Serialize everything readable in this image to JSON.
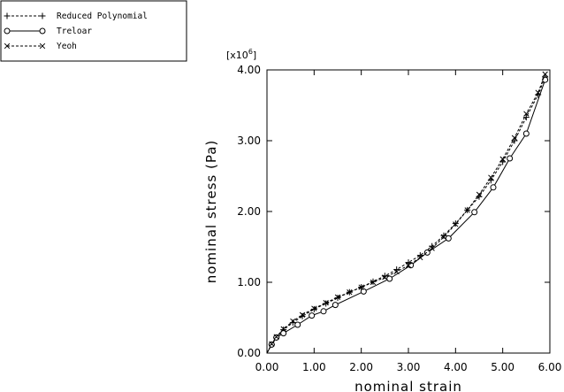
{
  "chart_data": {
    "type": "line",
    "xlabel": "nominal strain",
    "ylabel": "nominal stress (Pa)",
    "y_multiplier": {
      "base": "x10",
      "exponent": "6",
      "open": "[",
      "close": "]"
    },
    "xlim": [
      0,
      6
    ],
    "ylim": [
      0,
      4
    ],
    "x_ticks": [
      0,
      1,
      2,
      3,
      4,
      5,
      6
    ],
    "y_ticks": [
      0,
      1,
      2,
      3,
      4
    ],
    "x_tick_labels": [
      "0.00",
      "1.00",
      "2.00",
      "3.00",
      "4.00",
      "5.00",
      "6.00"
    ],
    "y_tick_labels": [
      "0.00",
      "1.00",
      "2.00",
      "3.00",
      "4.00"
    ],
    "grid": false,
    "legend_position": "top-left, outside plot",
    "series": [
      {
        "name": "Reduced Polynomial",
        "marker": "plus",
        "line_style": "dashed",
        "x": [
          0.0,
          0.1,
          0.2,
          0.35,
          0.55,
          0.75,
          1.0,
          1.25,
          1.5,
          1.75,
          2.0,
          2.25,
          2.5,
          2.75,
          3.0,
          3.25,
          3.5,
          3.75,
          4.0,
          4.25,
          4.5,
          4.75,
          5.0,
          5.25,
          5.5,
          5.75,
          5.9
        ],
        "y": [
          0.0,
          0.12,
          0.22,
          0.33,
          0.43,
          0.52,
          0.62,
          0.7,
          0.78,
          0.86,
          0.93,
          1.01,
          1.09,
          1.18,
          1.28,
          1.38,
          1.51,
          1.66,
          1.83,
          2.02,
          2.21,
          2.44,
          2.7,
          3.0,
          3.33,
          3.65,
          3.9
        ]
      },
      {
        "name": "Treloar",
        "marker": "circle",
        "line_style": "solid",
        "x": [
          0.0,
          0.1,
          0.2,
          0.35,
          0.65,
          0.95,
          1.2,
          1.45,
          2.05,
          2.6,
          3.05,
          3.4,
          3.85,
          4.4,
          4.8,
          5.15,
          5.5,
          5.9
        ],
        "y": [
          0.0,
          0.12,
          0.22,
          0.28,
          0.4,
          0.53,
          0.59,
          0.68,
          0.87,
          1.05,
          1.24,
          1.42,
          1.62,
          1.99,
          2.34,
          2.75,
          3.1,
          3.86
        ]
      },
      {
        "name": "Yeoh",
        "marker": "cross",
        "line_style": "dashed",
        "x": [
          0.0,
          0.1,
          0.2,
          0.35,
          0.55,
          0.75,
          1.0,
          1.25,
          1.5,
          1.75,
          2.0,
          2.25,
          2.5,
          2.75,
          3.0,
          3.25,
          3.5,
          3.75,
          4.0,
          4.25,
          4.5,
          4.75,
          5.0,
          5.25,
          5.5,
          5.75,
          5.9
        ],
        "y": [
          0.0,
          0.13,
          0.23,
          0.34,
          0.45,
          0.54,
          0.63,
          0.71,
          0.79,
          0.86,
          0.93,
          1.0,
          1.07,
          1.15,
          1.24,
          1.35,
          1.48,
          1.64,
          1.82,
          2.02,
          2.24,
          2.48,
          2.74,
          3.04,
          3.38,
          3.68,
          3.94
        ]
      }
    ]
  }
}
